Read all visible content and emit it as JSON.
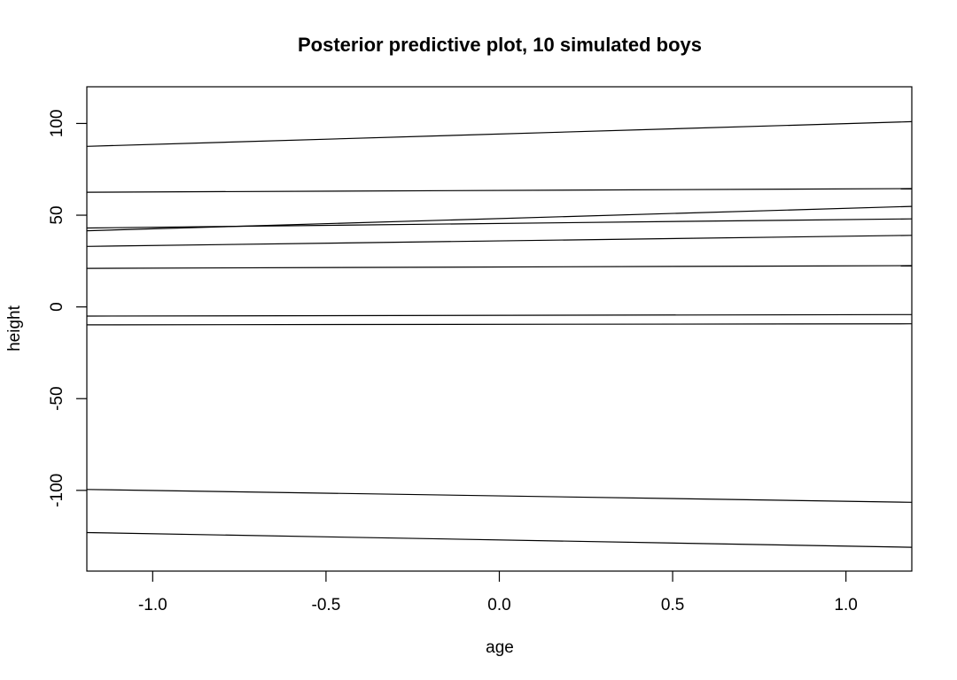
{
  "chart_data": {
    "type": "line",
    "title": "Posterior predictive plot, 10 simulated boys",
    "xlabel": "age",
    "ylabel": "height",
    "xlim": [
      -1.19,
      1.19
    ],
    "ylim": [
      -144,
      120
    ],
    "x_ticks": [
      -1.0,
      -0.5,
      0.0,
      0.5,
      1.0
    ],
    "x_tick_labels": [
      "-1.0",
      "-0.5",
      "0.0",
      "0.5",
      "1.0"
    ],
    "y_ticks": [
      -100,
      -50,
      0,
      50,
      100
    ],
    "y_tick_labels": [
      "-100",
      "-50",
      "0",
      "50",
      "100"
    ],
    "grid": false,
    "legend": "none",
    "line_color": "#000000",
    "series": [
      {
        "x": [
          -1.19,
          1.19
        ],
        "y": [
          87.5,
          101.0
        ]
      },
      {
        "x": [
          -1.19,
          1.19
        ],
        "y": [
          62.5,
          64.5
        ]
      },
      {
        "x": [
          -1.19,
          1.19
        ],
        "y": [
          41.5,
          54.8
        ]
      },
      {
        "x": [
          -1.19,
          1.19
        ],
        "y": [
          43.0,
          48.0
        ]
      },
      {
        "x": [
          -1.19,
          1.19
        ],
        "y": [
          33.0,
          39.0
        ]
      },
      {
        "x": [
          -1.19,
          1.19
        ],
        "y": [
          21.0,
          22.5
        ]
      },
      {
        "x": [
          -1.19,
          1.19
        ],
        "y": [
          -5.0,
          -4.2
        ]
      },
      {
        "x": [
          -1.19,
          1.19
        ],
        "y": [
          -9.8,
          -9.2
        ]
      },
      {
        "x": [
          -1.19,
          1.19
        ],
        "y": [
          -99.5,
          -106.5
        ]
      },
      {
        "x": [
          -1.19,
          1.19
        ],
        "y": [
          -123.0,
          -131.0
        ]
      }
    ]
  }
}
